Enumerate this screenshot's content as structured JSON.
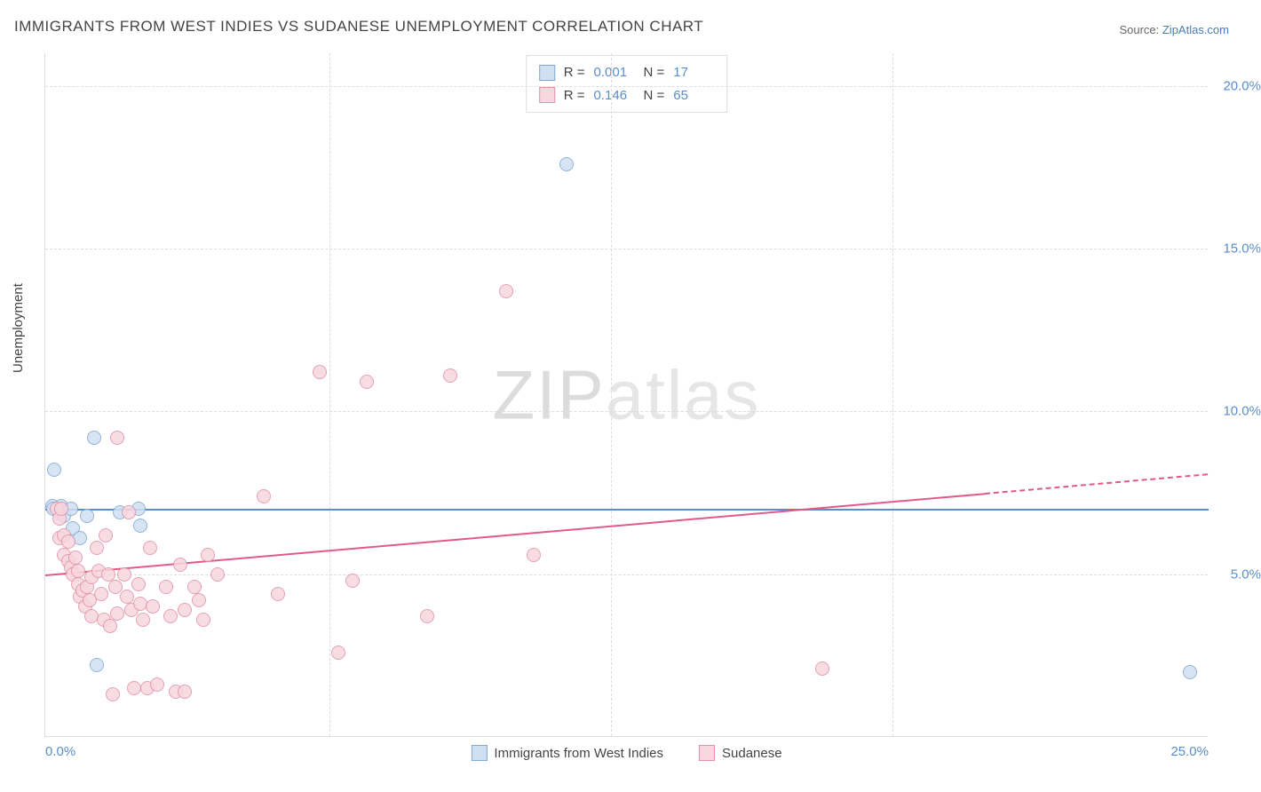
{
  "title": "IMMIGRANTS FROM WEST INDIES VS SUDANESE UNEMPLOYMENT CORRELATION CHART",
  "source_prefix": "Source: ",
  "source_name": "ZipAtlas.com",
  "ylabel": "Unemployment",
  "watermark_a": "ZIP",
  "watermark_b": "atlas",
  "chart": {
    "type": "scatter",
    "xlim": [
      0,
      25
    ],
    "ylim": [
      0,
      21
    ],
    "xtick_labels": {
      "0": "0.0%",
      "25": "25.0%"
    },
    "ytick_labels": {
      "5": "5.0%",
      "10": "10.0%",
      "15": "15.0%",
      "20": "20.0%"
    },
    "grid_y": [
      5,
      10,
      15,
      20
    ],
    "vlines": [
      6.1,
      12.15,
      18.2
    ],
    "grid_color": "#dddddd",
    "background_color": "#ffffff",
    "tick_color": "#5a8dc9"
  },
  "series": [
    {
      "key": "west_indies",
      "label": "Immigrants from West Indies",
      "marker_fill": "#cfe0f2",
      "marker_stroke": "#7fa8d4",
      "marker_size": 16,
      "R": "0.001",
      "N": "17",
      "trend": {
        "y_at_xmin": 7.0,
        "y_at_xmax": 7.0,
        "color": "#5a8dc9",
        "width": 2,
        "dash_from_x": null
      },
      "points": [
        [
          0.2,
          8.2
        ],
        [
          0.15,
          7.1
        ],
        [
          0.18,
          7.0
        ],
        [
          0.3,
          6.9
        ],
        [
          0.35,
          7.1
        ],
        [
          0.4,
          6.8
        ],
        [
          0.55,
          7.0
        ],
        [
          0.6,
          6.4
        ],
        [
          0.75,
          6.1
        ],
        [
          0.9,
          6.8
        ],
        [
          1.05,
          9.2
        ],
        [
          1.6,
          6.9
        ],
        [
          2.0,
          7.0
        ],
        [
          2.05,
          6.5
        ],
        [
          1.1,
          2.2
        ],
        [
          11.2,
          17.6
        ],
        [
          24.6,
          2.0
        ]
      ]
    },
    {
      "key": "sudanese",
      "label": "Sudanese",
      "marker_fill": "#f7d6df",
      "marker_stroke": "#e290a7",
      "marker_size": 16,
      "R": "0.146",
      "N": "65",
      "trend": {
        "y_at_xmin": 5.0,
        "y_at_xmax": 8.1,
        "color": "#e05a85",
        "width": 2,
        "dash_from_x": 20.2
      },
      "points": [
        [
          0.25,
          7.0
        ],
        [
          0.3,
          6.7
        ],
        [
          0.35,
          7.0
        ],
        [
          0.3,
          6.1
        ],
        [
          0.4,
          6.2
        ],
        [
          0.5,
          6.0
        ],
        [
          0.4,
          5.6
        ],
        [
          0.5,
          5.4
        ],
        [
          0.55,
          5.2
        ],
        [
          0.6,
          5.0
        ],
        [
          0.65,
          5.5
        ],
        [
          0.7,
          5.1
        ],
        [
          0.7,
          4.7
        ],
        [
          0.75,
          4.3
        ],
        [
          0.8,
          4.5
        ],
        [
          0.85,
          4.0
        ],
        [
          0.9,
          4.6
        ],
        [
          0.95,
          4.2
        ],
        [
          1.0,
          3.7
        ],
        [
          1.0,
          4.9
        ],
        [
          1.1,
          5.8
        ],
        [
          1.15,
          5.1
        ],
        [
          1.2,
          4.4
        ],
        [
          1.25,
          3.6
        ],
        [
          1.3,
          6.2
        ],
        [
          1.35,
          5.0
        ],
        [
          1.4,
          3.4
        ],
        [
          1.45,
          1.3
        ],
        [
          1.5,
          4.6
        ],
        [
          1.55,
          3.8
        ],
        [
          1.55,
          9.2
        ],
        [
          1.7,
          5.0
        ],
        [
          1.75,
          4.3
        ],
        [
          1.8,
          6.9
        ],
        [
          1.85,
          3.9
        ],
        [
          1.9,
          1.5
        ],
        [
          2.0,
          4.7
        ],
        [
          2.05,
          4.1
        ],
        [
          2.1,
          3.6
        ],
        [
          2.2,
          1.5
        ],
        [
          2.25,
          5.8
        ],
        [
          2.3,
          4.0
        ],
        [
          2.4,
          1.6
        ],
        [
          2.6,
          4.6
        ],
        [
          2.7,
          3.7
        ],
        [
          2.8,
          1.4
        ],
        [
          2.9,
          5.3
        ],
        [
          3.0,
          3.9
        ],
        [
          3.0,
          1.4
        ],
        [
          3.2,
          4.6
        ],
        [
          3.3,
          4.2
        ],
        [
          3.4,
          3.6
        ],
        [
          3.5,
          5.6
        ],
        [
          3.7,
          5.0
        ],
        [
          4.7,
          7.4
        ],
        [
          5.0,
          4.4
        ],
        [
          5.9,
          11.2
        ],
        [
          6.3,
          2.6
        ],
        [
          6.6,
          4.8
        ],
        [
          6.9,
          10.9
        ],
        [
          8.2,
          3.7
        ],
        [
          8.7,
          11.1
        ],
        [
          9.9,
          13.7
        ],
        [
          10.5,
          5.6
        ],
        [
          16.7,
          2.1
        ]
      ]
    }
  ],
  "legend_top_labels": {
    "R": "R =",
    "N": "N ="
  }
}
